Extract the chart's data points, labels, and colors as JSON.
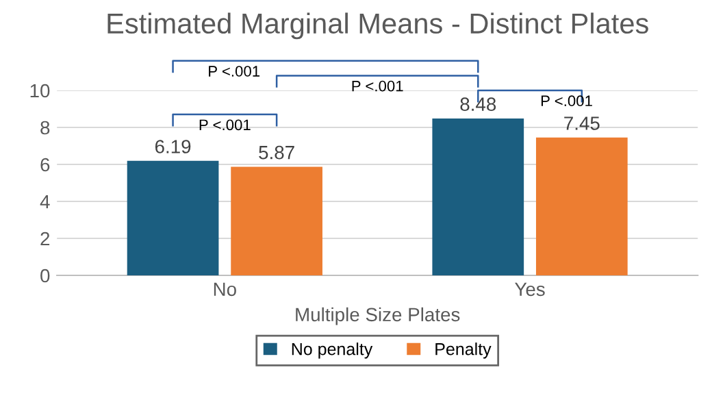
{
  "chart_data": {
    "type": "bar",
    "title": "Estimated Marginal Means - Distinct Plates",
    "xlabel": "Multiple Size Plates",
    "categories": [
      "No",
      "Yes"
    ],
    "series": [
      {
        "name": "No penalty",
        "color": "#1b5e80",
        "values": [
          6.19,
          8.48
        ]
      },
      {
        "name": "Penalty",
        "color": "#ed7d31",
        "values": [
          5.87,
          7.45
        ]
      }
    ],
    "ylim": [
      0,
      10
    ],
    "yticks": [
      0,
      2,
      4,
      6,
      8,
      10
    ],
    "grid": "y",
    "data_labels": true,
    "legend": "bottom",
    "annotations": [
      "P <.001",
      "P <.001",
      "P <.001",
      "P <.001"
    ]
  }
}
